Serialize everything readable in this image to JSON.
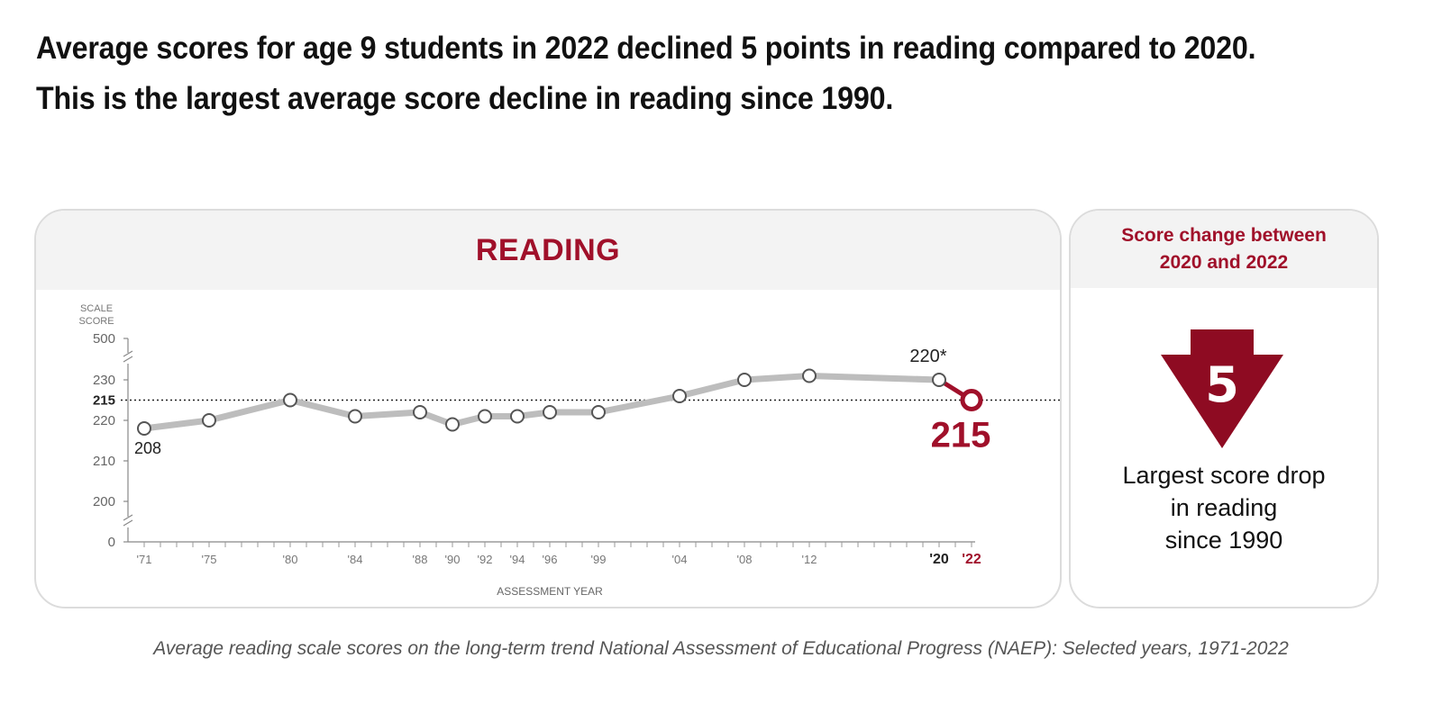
{
  "headline": {
    "line1": "Average scores for age 9 students in 2022 declined 5 points in reading compared to 2020.",
    "line2": "This is the largest average score decline in reading since 1990."
  },
  "colors": {
    "accent": "#a0102a",
    "line": "#bdbdbd",
    "panel_border": "#dcdcdc",
    "panel_header": "#f3f3f3"
  },
  "chart_data": {
    "type": "line",
    "title": "READING",
    "ylabel": [
      "SCALE",
      "SCORE"
    ],
    "xlabel": "ASSESSMENT YEAR",
    "y_ticks": [
      "500",
      "230",
      "220",
      "210",
      "200",
      "0"
    ],
    "reference_line": {
      "value": 215,
      "label": "215"
    },
    "x_tick_labels": [
      {
        "year": 1971,
        "label": "'71"
      },
      {
        "year": 1975,
        "label": "'75"
      },
      {
        "year": 1980,
        "label": "'80"
      },
      {
        "year": 1984,
        "label": "'84"
      },
      {
        "year": 1988,
        "label": "'88"
      },
      {
        "year": 1990,
        "label": "'90"
      },
      {
        "year": 1992,
        "label": "'92"
      },
      {
        "year": 1994,
        "label": "'94"
      },
      {
        "year": 1996,
        "label": "'96"
      },
      {
        "year": 1999,
        "label": "'99"
      },
      {
        "year": 2004,
        "label": "'04"
      },
      {
        "year": 2008,
        "label": "'08"
      },
      {
        "year": 2012,
        "label": "'12"
      },
      {
        "year": 2020,
        "label": "'20"
      },
      {
        "year": 2022,
        "label": "'22"
      }
    ],
    "series": [
      {
        "x": [
          1971,
          1975,
          1980,
          1984,
          1988,
          1990,
          1992,
          1994,
          1996,
          1999,
          2004,
          2008,
          2012,
          2020,
          2022
        ],
        "y": [
          208,
          210,
          215,
          211,
          212,
          209,
          211,
          211,
          212,
          212,
          216,
          220,
          221,
          220,
          215
        ]
      }
    ],
    "data_labels": [
      {
        "year": 1971,
        "text": "208"
      },
      {
        "year": 2020,
        "text": "220*"
      },
      {
        "year": 2022,
        "text": "215"
      }
    ]
  },
  "score_change": {
    "title_line1": "Score change between",
    "title_line2": "2020 and 2022",
    "value": "5",
    "text_line1": "Largest score drop",
    "text_line2": "in reading",
    "text_line3": "since 1990"
  },
  "caption": "Average reading scale scores on the long-term trend National Assessment of Educational Progress (NAEP): Selected years, 1971-2022"
}
